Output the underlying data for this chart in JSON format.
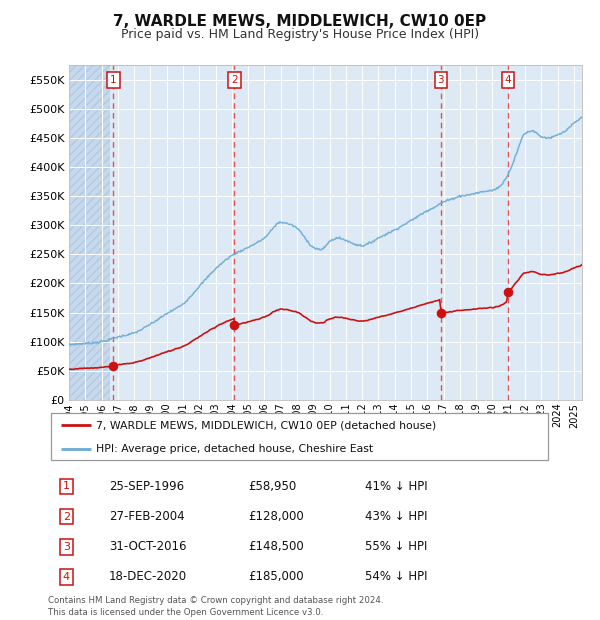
{
  "title": "7, WARDLE MEWS, MIDDLEWICH, CW10 0EP",
  "subtitle": "Price paid vs. HM Land Registry's House Price Index (HPI)",
  "ylabel_ticks": [
    "£0",
    "£50K",
    "£100K",
    "£150K",
    "£200K",
    "£250K",
    "£300K",
    "£350K",
    "£400K",
    "£450K",
    "£500K",
    "£550K"
  ],
  "ylabel_values": [
    0,
    50000,
    100000,
    150000,
    200000,
    250000,
    300000,
    350000,
    400000,
    450000,
    500000,
    550000
  ],
  "ylim": [
    0,
    575000
  ],
  "xmin": 1994.0,
  "xmax": 2025.5,
  "hatch_xmax": 1996.5,
  "background_color": "#ddeaf6",
  "hatch_color": "#c5d8ec",
  "sale_dates": [
    1996.73,
    2004.15,
    2016.83,
    2020.96
  ],
  "sale_prices": [
    58950,
    128000,
    148500,
    185000
  ],
  "sale_labels": [
    "1",
    "2",
    "3",
    "4"
  ],
  "red_line_color": "#cc1111",
  "blue_line_color": "#6aaad4",
  "legend_label_red": "7, WARDLE MEWS, MIDDLEWICH, CW10 0EP (detached house)",
  "legend_label_blue": "HPI: Average price, detached house, Cheshire East",
  "transaction_info": [
    {
      "label": "1",
      "date": "25-SEP-1996",
      "price": "£58,950",
      "pct": "41% ↓ HPI"
    },
    {
      "label": "2",
      "date": "27-FEB-2004",
      "price": "£128,000",
      "pct": "43% ↓ HPI"
    },
    {
      "label": "3",
      "date": "31-OCT-2016",
      "price": "£148,500",
      "pct": "55% ↓ HPI"
    },
    {
      "label": "4",
      "date": "18-DEC-2020",
      "price": "£185,000",
      "pct": "54% ↓ HPI"
    }
  ],
  "footer": "Contains HM Land Registry data © Crown copyright and database right 2024.\nThis data is licensed under the Open Government Licence v3.0.",
  "title_fontsize": 11,
  "subtitle_fontsize": 9
}
